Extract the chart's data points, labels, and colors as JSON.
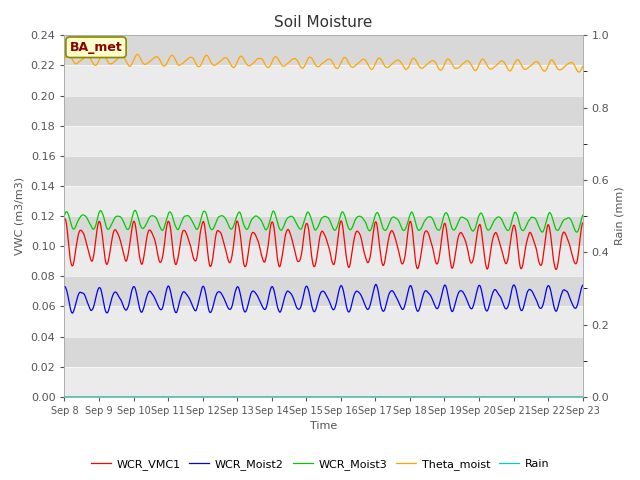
{
  "title": "Soil Moisture",
  "ylabel_left": "VWC (m3/m3)",
  "ylabel_right": "Rain (mm)",
  "xlabel": "Time",
  "ylim_left": [
    0.0,
    0.24
  ],
  "ylim_right": [
    0.0,
    1.0
  ],
  "yticks_left": [
    0.0,
    0.02,
    0.04,
    0.06,
    0.08,
    0.1,
    0.12,
    0.14,
    0.16,
    0.18,
    0.2,
    0.22,
    0.24
  ],
  "yticks_right_labels": [
    0.0,
    0.2,
    0.4,
    0.6,
    0.8,
    1.0
  ],
  "yticks_right_minor": [
    0.1,
    0.3,
    0.5,
    0.7,
    0.9
  ],
  "station_label": "BA_met",
  "bg_color": "#d8d8d8",
  "alt_band_color": "#ebebeb",
  "fig_bg": "#ffffff",
  "series": [
    {
      "name": "WCR_VMC1",
      "color": "#ff0000",
      "base": 0.102,
      "amp": 0.012,
      "freq": 2.0,
      "phase": 0.5,
      "trend": -0.0002,
      "noise": 0.002
    },
    {
      "name": "WCR_Moist2",
      "color": "#0000ff",
      "base": 0.064,
      "amp": 0.007,
      "freq": 2.0,
      "phase": 0.5,
      "trend": 0.0001,
      "noise": 0.001
    },
    {
      "name": "WCR_Moist3",
      "color": "#00cc00",
      "base": 0.117,
      "amp": 0.005,
      "freq": 2.0,
      "phase": 0.3,
      "trend": -0.0001,
      "noise": 0.001
    },
    {
      "name": "Theta_moist",
      "color": "#ffa500",
      "base": 0.224,
      "amp": 0.003,
      "freq": 2.0,
      "phase": 0.0,
      "trend": -0.0003,
      "noise": 0.0005
    },
    {
      "name": "Rain",
      "color": "#00cccc",
      "base": 0.0,
      "amp": 0.0,
      "freq": 1.0,
      "phase": 0.0,
      "trend": 0.0,
      "noise": 0.0
    }
  ],
  "n_days": 15,
  "points_per_day": 96,
  "start_day": 8,
  "title_fontsize": 11,
  "label_fontsize": 8,
  "tick_fontsize": 8,
  "legend_fontsize": 8
}
